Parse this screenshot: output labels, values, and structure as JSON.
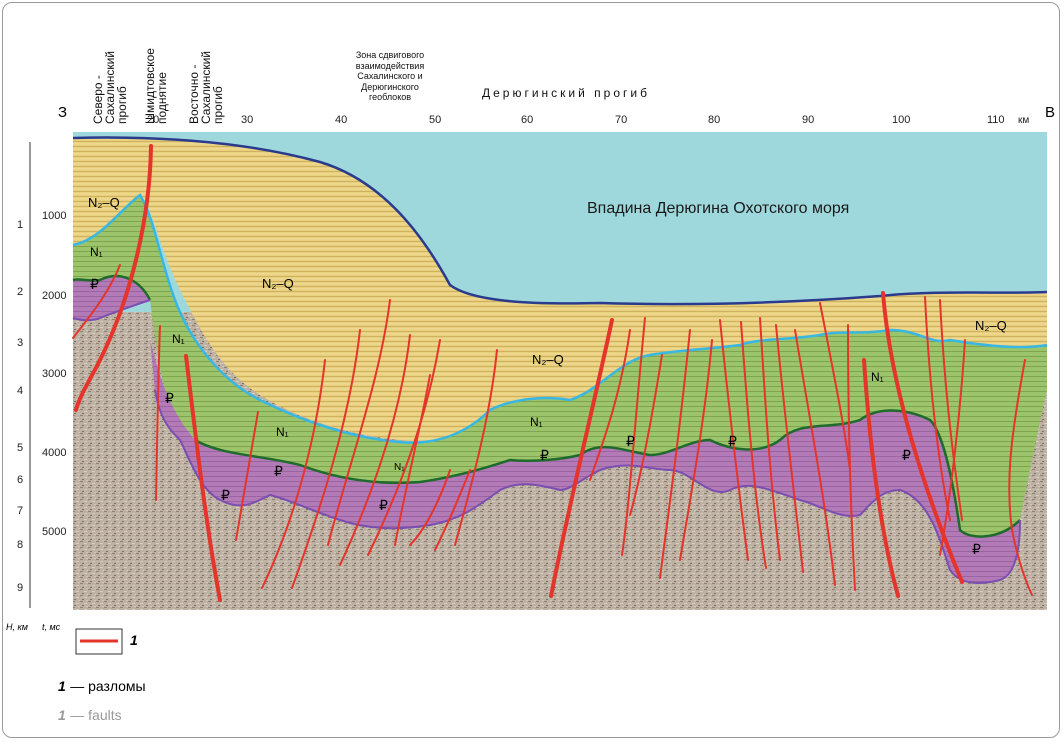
{
  "orientation": {
    "west": "З",
    "east": "В"
  },
  "structures": [
    {
      "id": "north-sakhalin",
      "text": "Северо -\nСахалинский\nпрогиб"
    },
    {
      "id": "schmidt",
      "text": "Шмидтовское\nподнятие"
    },
    {
      "id": "east-sakhalin",
      "text": "Восточно -\nСахалинский\nпрогиб"
    }
  ],
  "zone_label": "Зона сдвигового\nвзаимодействия\nСахалинского и\nДерюгинского\nгеоблоков",
  "deryugin_trough": "Дерюгинский прогиб",
  "distance_ticks": [
    "20",
    "30",
    "40",
    "50",
    "60",
    "70",
    "80",
    "90",
    "100",
    "110"
  ],
  "distance_unit": "км",
  "time_ticks": [
    "1000",
    "2000",
    "3000",
    "4000",
    "5000"
  ],
  "depth_ticks": [
    "1",
    "2",
    "3",
    "4",
    "5",
    "6",
    "7",
    "8",
    "9"
  ],
  "axis_labels": {
    "depth": "H, км",
    "time": "t, мс"
  },
  "basin_label": "Впадина Дерюгина Охотского моря",
  "unit_labels": {
    "n2q": "N₂–Q",
    "n1": "N₁",
    "paleogene": "₽"
  },
  "legend": {
    "number": "1",
    "ru_number": "1",
    "ru_text": "— разломы",
    "en_number": "1",
    "en_text": "— faults"
  },
  "colors": {
    "sea": "#9fd8dc",
    "seafloor": "#2a3a8c",
    "n2q": "#e7cd7a",
    "n1": "#9cc46a",
    "n1_top": "#38b7e3",
    "paleogene": "#b27bb8",
    "paleogene_top": "#1f6b2c",
    "paleogene_base": "#7a4fb0",
    "basement": "#b9ad9e",
    "faults": "#e5342b"
  }
}
